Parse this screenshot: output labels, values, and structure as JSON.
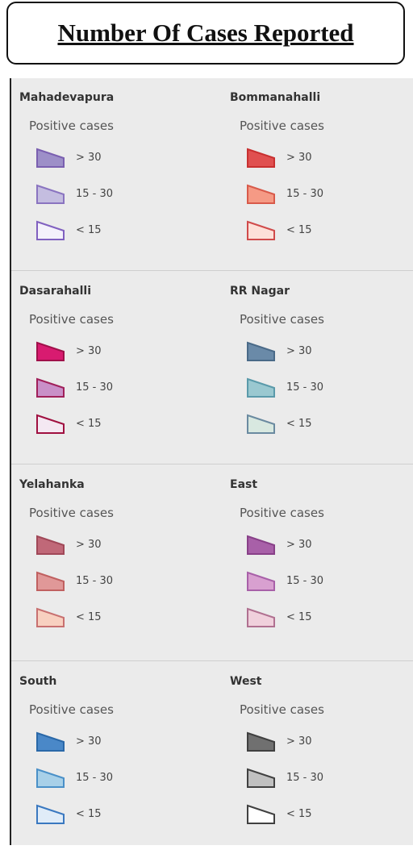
{
  "title": "Number Of Cases Reported",
  "groups": [
    {
      "name": "Mahadevapura",
      "subtitle": "Positive cases",
      "items": [
        {
          "label": "> 30",
          "fill": "#9d8fc8",
          "stroke": "#7a5fb0"
        },
        {
          "label": "15 - 30",
          "fill": "#c4bde0",
          "stroke": "#8a74c0"
        },
        {
          "label": "< 15",
          "fill": "#f4f1fb",
          "stroke": "#8060c0"
        }
      ]
    },
    {
      "name": "Bommanahalli",
      "subtitle": "Positive cases",
      "items": [
        {
          "label": "> 30",
          "fill": "#e05050",
          "stroke": "#c83030"
        },
        {
          "label": "15 - 30",
          "fill": "#f59a85",
          "stroke": "#d85a4a"
        },
        {
          "label": "< 15",
          "fill": "#fde0d8",
          "stroke": "#d04a4a"
        }
      ]
    },
    {
      "name": "Dasarahalli",
      "subtitle": "Positive cases",
      "items": [
        {
          "label": "> 30",
          "fill": "#d81b70",
          "stroke": "#a0104a"
        },
        {
          "label": "15 - 30",
          "fill": "#c990c8",
          "stroke": "#a0205a"
        },
        {
          "label": "< 15",
          "fill": "#f4e8f2",
          "stroke": "#a01040"
        }
      ]
    },
    {
      "name": "RR Nagar",
      "subtitle": "Positive cases",
      "items": [
        {
          "label": "> 30",
          "fill": "#6a8aa8",
          "stroke": "#4a6a88"
        },
        {
          "label": "15 - 30",
          "fill": "#9ac8d0",
          "stroke": "#5a9aaa"
        },
        {
          "label": "< 15",
          "fill": "#d8e8e0",
          "stroke": "#6a8aa0"
        }
      ]
    },
    {
      "name": "Yelahanka",
      "subtitle": "Positive cases",
      "items": [
        {
          "label": "> 30",
          "fill": "#c06878",
          "stroke": "#a04858"
        },
        {
          "label": "15 - 30",
          "fill": "#e09898",
          "stroke": "#c06060"
        },
        {
          "label": "< 15",
          "fill": "#f8d0c0",
          "stroke": "#c87070"
        }
      ]
    },
    {
      "name": "East",
      "subtitle": "Positive cases",
      "items": [
        {
          "label": "> 30",
          "fill": "#a860a8",
          "stroke": "#884088"
        },
        {
          "label": "15 - 30",
          "fill": "#d8a0d0",
          "stroke": "#a860a8"
        },
        {
          "label": "< 15",
          "fill": "#f0d0dc",
          "stroke": "#b07090"
        }
      ]
    },
    {
      "name": "South",
      "subtitle": "Positive cases",
      "items": [
        {
          "label": "> 30",
          "fill": "#4a88c8",
          "stroke": "#2a68a8"
        },
        {
          "label": "15 - 30",
          "fill": "#a8d0e8",
          "stroke": "#4a90c8"
        },
        {
          "label": "< 15",
          "fill": "#e0ecf8",
          "stroke": "#3a78c0"
        }
      ]
    },
    {
      "name": "West",
      "subtitle": "Positive cases",
      "items": [
        {
          "label": "> 30",
          "fill": "#707070",
          "stroke": "#404040"
        },
        {
          "label": "15 - 30",
          "fill": "#c0c0c0",
          "stroke": "#404040"
        },
        {
          "label": "< 15",
          "fill": "#ffffff",
          "stroke": "#404040"
        }
      ]
    }
  ]
}
